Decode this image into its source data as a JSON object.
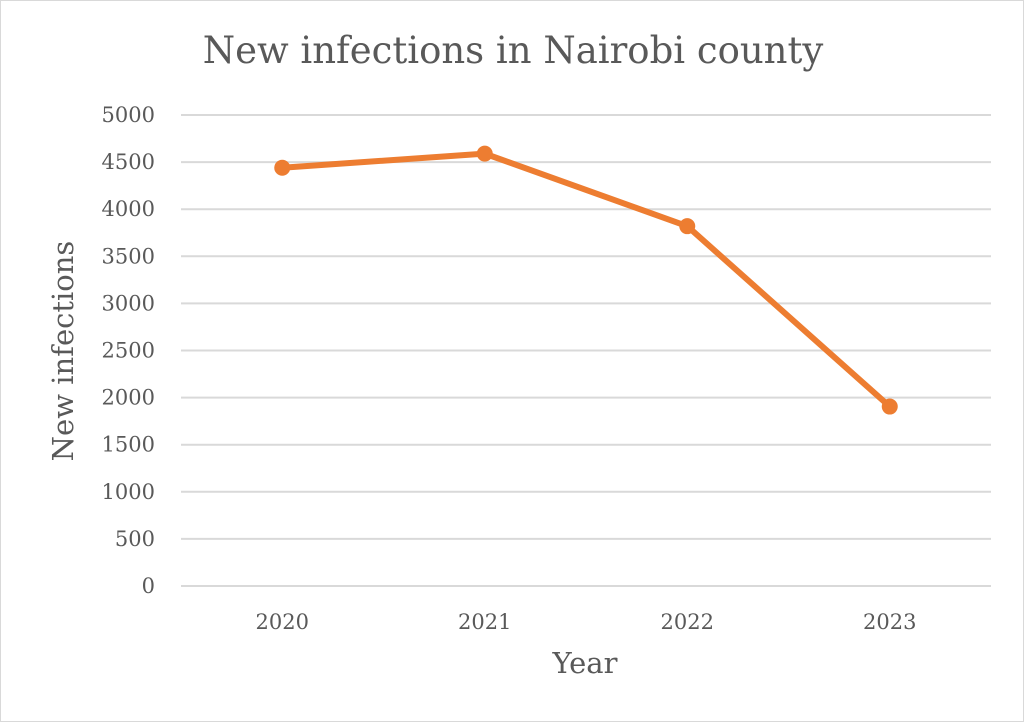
{
  "chart_data": {
    "type": "line",
    "title": "New infections in Nairobi county",
    "xlabel": "Year",
    "ylabel": "New infections",
    "categories": [
      "2020",
      "2021",
      "2022",
      "2023"
    ],
    "series": [
      {
        "name": "New infections",
        "values": [
          4440,
          4590,
          3820,
          1905
        ],
        "color": "#ED7D31"
      }
    ],
    "ylim": [
      0,
      5000
    ],
    "yticks": [
      0,
      500,
      1000,
      1500,
      2000,
      2500,
      3000,
      3500,
      4000,
      4500,
      5000
    ],
    "grid": true,
    "legend": "none"
  }
}
